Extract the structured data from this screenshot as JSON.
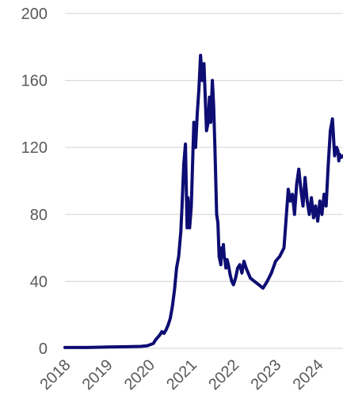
{
  "chart_data": {
    "type": "line",
    "title": "",
    "xlabel": "",
    "ylabel": "",
    "ylim": [
      0,
      200
    ],
    "yticks": [
      0,
      40,
      80,
      120,
      160,
      200
    ],
    "xticks": [
      "2018",
      "2019",
      "2020",
      "2021",
      "2022",
      "2023",
      "2024"
    ],
    "xlim": [
      2018.0,
      2024.6
    ],
    "grid": "horizontal",
    "legend": "none",
    "colors": {
      "series": "#0d0d73",
      "grid": "#d9d9d9",
      "tick_text": "#595959"
    },
    "series": [
      {
        "x": [
          2018.0,
          2018.5,
          2019.0,
          2019.5,
          2019.8,
          2019.95,
          2020.0,
          2020.1,
          2020.15,
          2020.25,
          2020.3,
          2020.35,
          2020.4,
          2020.45,
          2020.5,
          2020.55,
          2020.6,
          2020.65,
          2020.7,
          2020.75,
          2020.78,
          2020.82,
          2020.86,
          2020.88,
          2020.9,
          2020.92,
          2020.94,
          2020.96,
          2021.0,
          2021.03,
          2021.06,
          2021.1,
          2021.14,
          2021.18,
          2021.22,
          2021.26,
          2021.3,
          2021.33,
          2021.36,
          2021.4,
          2021.43,
          2021.46,
          2021.5,
          2021.53,
          2021.56,
          2021.6,
          2021.63,
          2021.66,
          2021.7,
          2021.72,
          2021.74,
          2021.76,
          2021.78,
          2021.8,
          2021.82,
          2021.85,
          2021.88,
          2021.92,
          2021.96,
          2022.0,
          2022.05,
          2022.1,
          2022.15,
          2022.2,
          2022.25,
          2022.3,
          2022.35,
          2022.4,
          2022.5,
          2022.6,
          2022.7,
          2022.8,
          2022.9,
          2023.0,
          2023.1,
          2023.2,
          2023.3,
          2023.35,
          2023.4,
          2023.45,
          2023.5,
          2023.55,
          2023.6,
          2023.65,
          2023.7,
          2023.75,
          2023.8,
          2023.85,
          2023.9,
          2023.95,
          2024.0,
          2024.05,
          2024.1,
          2024.15,
          2024.2,
          2024.25,
          2024.3,
          2024.35,
          2024.4,
          2024.45,
          2024.48,
          2024.5,
          2024.52,
          2024.55,
          2024.6
        ],
        "values": [
          0.5,
          0.5,
          0.8,
          1,
          1.2,
          1.5,
          2,
          3,
          5,
          8,
          10,
          9,
          11,
          14,
          18,
          25,
          35,
          48,
          55,
          70,
          85,
          110,
          122,
          95,
          72,
          90,
          80,
          72,
          85,
          110,
          135,
          120,
          140,
          155,
          175,
          160,
          170,
          150,
          130,
          135,
          150,
          135,
          160,
          145,
          120,
          80,
          75,
          55,
          50,
          60,
          55,
          62,
          55,
          52,
          48,
          53,
          50,
          44,
          40,
          38,
          42,
          48,
          50,
          45,
          52,
          48,
          45,
          42,
          40,
          38,
          36,
          40,
          45,
          52,
          55,
          60,
          95,
          88,
          92,
          80,
          98,
          107,
          95,
          85,
          102,
          88,
          80,
          90,
          78,
          85,
          76,
          88,
          80,
          92,
          85,
          110,
          130,
          137,
          115,
          120,
          118,
          112,
          116,
          114,
          115
        ]
      }
    ]
  }
}
